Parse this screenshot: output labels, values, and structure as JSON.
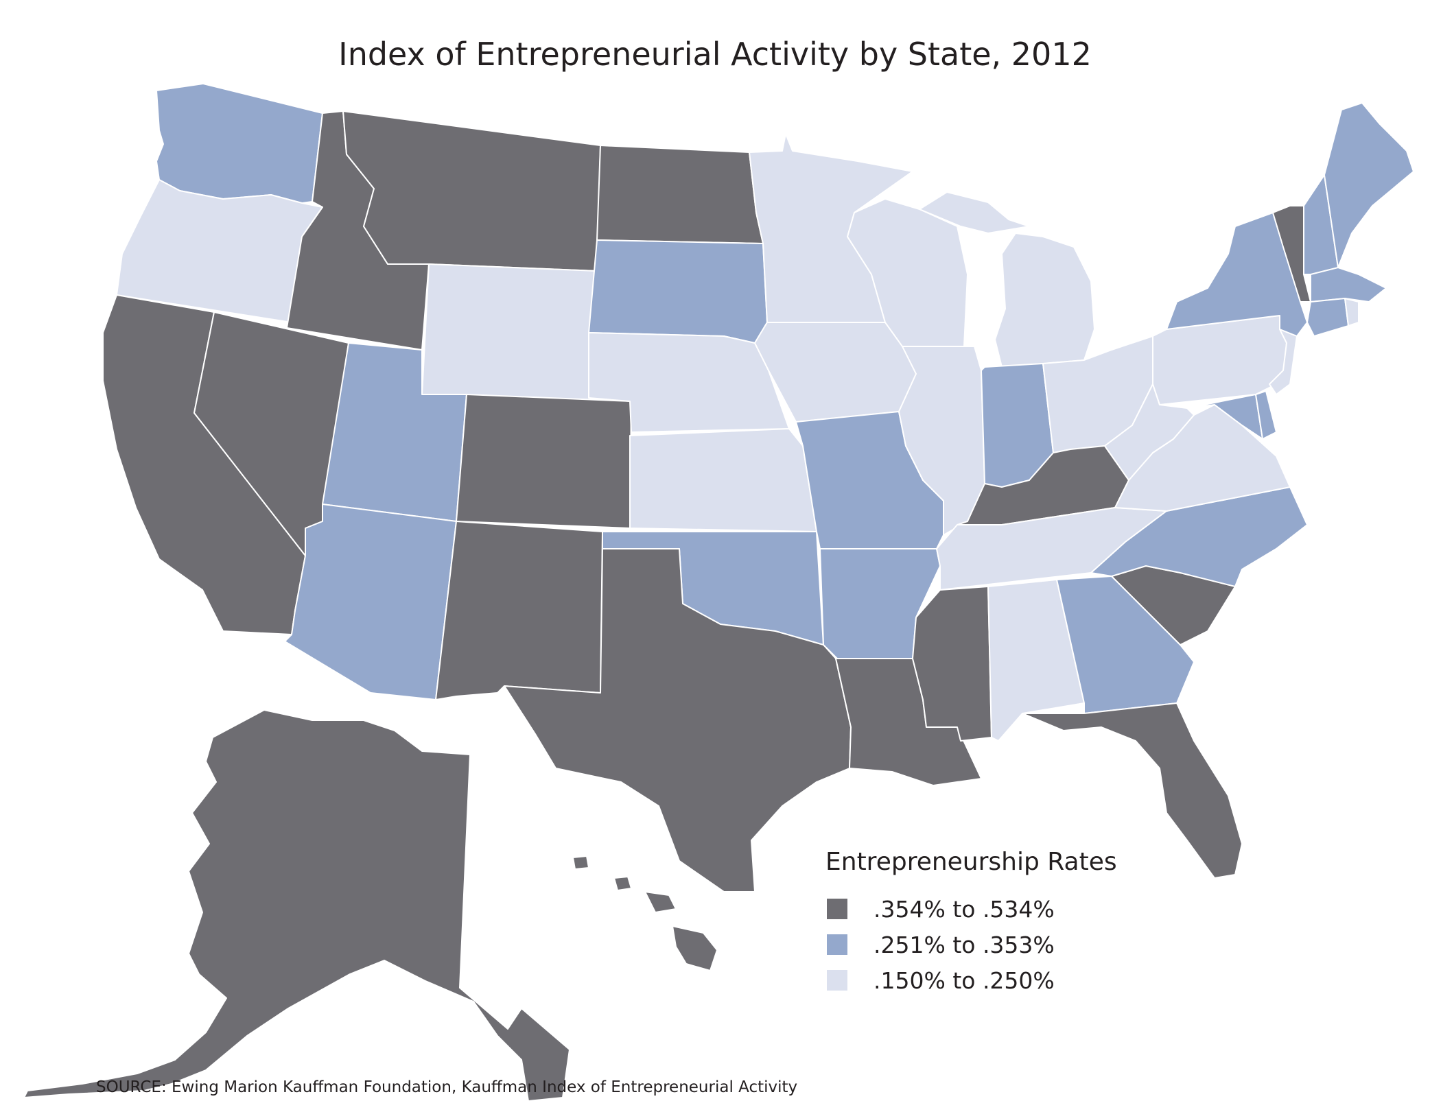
{
  "title": "Index of Entrepreneurial Activity by State, 2012",
  "legend": {
    "title": "Entrepreneurship Rates",
    "items": [
      {
        "label": ".354% to .534%",
        "color": "#6e6d72"
      },
      {
        "label": ".251% to .353%",
        "color": "#94a8cc"
      },
      {
        "label": ".150% to .250%",
        "color": "#dbe0ee"
      }
    ]
  },
  "source": "SOURCE: Ewing Marion Kauffman Foundation, Kauffman Index of Entrepreneurial Activity",
  "colors": {
    "high": "#6e6d72",
    "mid": "#94a8cc",
    "low": "#dbe0ee",
    "border": "#ffffff"
  }
}
